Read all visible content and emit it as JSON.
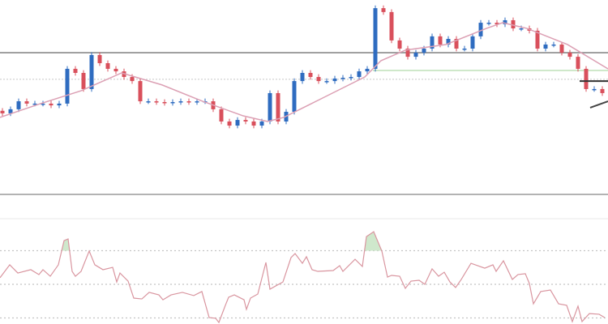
{
  "chart_data": [
    {
      "type": "candlestick",
      "title": "",
      "xlabel": "",
      "ylabel": "",
      "ylim": [
        0,
        100
      ],
      "colors": {
        "up": "#2f6cc0",
        "down": "#d9505c",
        "moving_average": "#dca0b4"
      },
      "close": [
        41.7,
        43.8,
        47.9,
        46.7,
        46.7,
        46.7,
        45.8,
        46.7,
        64.6,
        62.5,
        54.2,
        71.7,
        67.5,
        64.6,
        63.3,
        60.4,
        58.3,
        47.9,
        47.9,
        47.5,
        47.1,
        47.5,
        47.9,
        47.5,
        47.9,
        47.9,
        43.8,
        37.5,
        35.4,
        38.3,
        37.5,
        35.4,
        37.5,
        52.1,
        37.5,
        42.5,
        58.3,
        62.5,
        60.4,
        58.3,
        58.3,
        59.6,
        60,
        60.4,
        63.3,
        64.6,
        95.8,
        93.8,
        79.2,
        75,
        70.8,
        72.9,
        75,
        81.3,
        77.1,
        80,
        75,
        75,
        81.3,
        88.3,
        88.3,
        87.5,
        89.6,
        85.4,
        85.4,
        84.2,
        75,
        77.1,
        77.1,
        72.9,
        70.8,
        64.6,
        54.2,
        54.2,
        52.1,
        50
      ],
      "first_open": 43,
      "moving_average": {
        "x": [
          0,
          5,
          10,
          15,
          20,
          25,
          30,
          33,
          35,
          40,
          45,
          47,
          50,
          55,
          60,
          62,
          65,
          70,
          75
        ],
        "y": [
          39.6,
          46.7,
          53.3,
          62.5,
          56.3,
          47.9,
          40.4,
          37.5,
          39.6,
          50,
          60.4,
          68.8,
          74.2,
          77.1,
          85.4,
          88.3,
          85.4,
          77.1,
          64.6
        ]
      },
      "horizontal_levels": [
        {
          "value": 72.9,
          "style": "solid",
          "color": "#8a8a8a"
        },
        {
          "value": 59.2,
          "style": "dotted",
          "color": "#c8c8c8"
        },
        {
          "value": 63.75,
          "style": "solid",
          "color": "#bfe0b8",
          "from_x": 46
        }
      ],
      "annotations": [
        {
          "kind": "line",
          "x": [
            71.5,
            75
          ],
          "y": [
            58.3,
            58.3
          ],
          "color": "#333333"
        },
        {
          "kind": "line",
          "x": [
            72.8,
            75
          ],
          "y": [
            44.6,
            47.9
          ],
          "color": "#444444"
        }
      ]
    },
    {
      "type": "line",
      "title": "",
      "xlabel": "",
      "ylabel": "",
      "ylim": [
        20,
        90
      ],
      "color": "#d9959f",
      "overbought_fill_color": "#cfe8cc",
      "reference_levels": [
        70,
        50,
        30
      ],
      "series": [
        {
          "x": [
            0,
            1.2,
            2.2,
            3.8,
            4.8,
            5.3,
            6.2,
            7.2,
            7.9,
            8.4,
            8.9,
            9.3,
            10,
            11,
            11.7,
            12.7,
            13.9,
            14.4,
            14.8,
            15.8,
            16.5,
            17.5,
            18.4,
            19.6,
            20.1,
            21.1,
            22.5,
            23.9,
            24.9,
            25.8,
            26.6,
            27,
            27.8,
            28.2,
            28.9,
            30.1,
            30.4,
            30.9,
            31.8,
            32.8,
            33.3,
            34,
            34.9,
            35.9,
            36.4,
            37.3,
            37.8,
            38.5,
            39.2,
            41.1,
            41.9,
            42.3,
            43.8,
            44.7,
            45.2,
            46.1,
            47.1,
            47.8,
            48.3,
            49.3,
            50,
            50.7,
            51.7,
            52.4,
            53.3,
            54.1,
            54.8,
            55.5,
            56.2,
            56.9,
            58.1,
            59.8,
            60.8,
            61.2,
            62.1,
            63.2,
            63.9,
            64.8,
            65.3,
            65.8,
            66.7,
            67.9,
            68.9,
            69.9,
            70.6,
            71.3,
            71.8,
            72.7,
            73.9,
            74.6
          ],
          "y": [
            53.9,
            61.6,
            56.7,
            58.7,
            55.8,
            58.7,
            54.8,
            61.6,
            76,
            77,
            57.7,
            54.8,
            57.7,
            69.8,
            61.6,
            58.7,
            60.1,
            51.4,
            56.7,
            51.9,
            41.8,
            41.3,
            45.2,
            43.7,
            40.8,
            43.7,
            45.2,
            43.3,
            45.7,
            30.2,
            29.8,
            27.3,
            37.5,
            42.3,
            43.7,
            40.8,
            35.1,
            41.8,
            44.2,
            63,
            47.1,
            49,
            51.4,
            65.9,
            68.3,
            62.5,
            66.4,
            58.7,
            57.7,
            58.2,
            61.1,
            57.7,
            64.9,
            60.6,
            78.4,
            81.3,
            69.8,
            54.3,
            55.3,
            54.8,
            47.6,
            51.9,
            52.4,
            50,
            59.2,
            54.8,
            57.2,
            51.4,
            48.1,
            52.9,
            62.5,
            59.6,
            61.6,
            57.7,
            64,
            52.9,
            55.8,
            56.3,
            50.5,
            38.4,
            45.7,
            46.6,
            38.4,
            37.5,
            27.8,
            37,
            27.8,
            32.6,
            32.2,
            30.2
          ]
        }
      ]
    }
  ]
}
